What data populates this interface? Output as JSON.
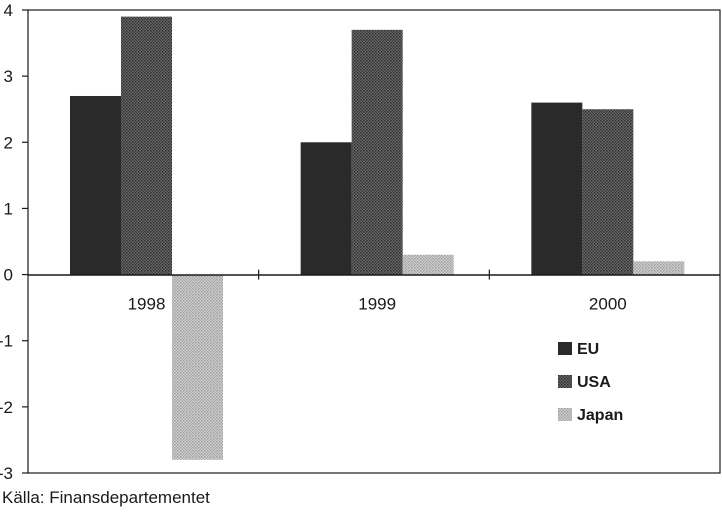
{
  "chart_data": {
    "type": "bar",
    "categories": [
      "1998",
      "1999",
      "2000"
    ],
    "series": [
      {
        "name": "EU",
        "values": [
          2.7,
          2.0,
          2.6
        ],
        "color": "#2a2a2a",
        "pattern": "solid"
      },
      {
        "name": "USA",
        "values": [
          3.9,
          3.7,
          2.5
        ],
        "color": "#555555",
        "pattern": "dense-dots"
      },
      {
        "name": "Japan",
        "values": [
          -2.8,
          0.3,
          0.2
        ],
        "color": "#b8b8b8",
        "pattern": "light-dots"
      }
    ],
    "yticks": [
      "4",
      "3",
      "2",
      "1",
      "0",
      "-1",
      "-2",
      "-3"
    ],
    "ylim": [
      -3,
      4
    ],
    "title": "",
    "xlabel": "",
    "ylabel": "",
    "legend_position": "lower-right",
    "grid": false
  },
  "source": "Källa: Finansdepartementet"
}
